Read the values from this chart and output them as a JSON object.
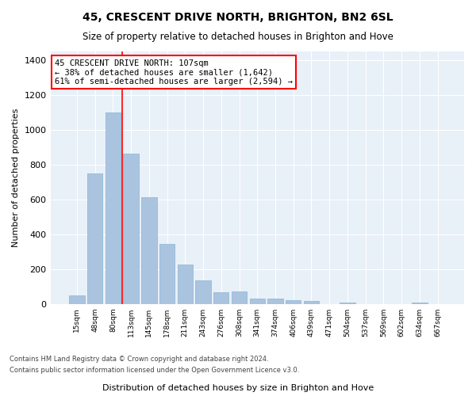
{
  "title": "45, CRESCENT DRIVE NORTH, BRIGHTON, BN2 6SL",
  "subtitle": "Size of property relative to detached houses in Brighton and Hove",
  "xlabel": "Distribution of detached houses by size in Brighton and Hove",
  "ylabel": "Number of detached properties",
  "bar_labels": [
    "15sqm",
    "48sqm",
    "80sqm",
    "113sqm",
    "145sqm",
    "178sqm",
    "211sqm",
    "243sqm",
    "276sqm",
    "308sqm",
    "341sqm",
    "374sqm",
    "406sqm",
    "439sqm",
    "471sqm",
    "504sqm",
    "537sqm",
    "569sqm",
    "602sqm",
    "634sqm",
    "667sqm"
  ],
  "bar_heights": [
    50,
    750,
    1100,
    865,
    615,
    345,
    225,
    135,
    65,
    70,
    30,
    30,
    20,
    15,
    0,
    10,
    0,
    0,
    0,
    10,
    0
  ],
  "bar_color": "#aac4e0",
  "bar_edge_color": "#8ab4d4",
  "background_color": "#e8f0f8",
  "grid_color": "#ffffff",
  "annotation_text": "45 CRESCENT DRIVE NORTH: 107sqm\n← 38% of detached houses are smaller (1,642)\n61% of semi-detached houses are larger (2,594) →",
  "vline_bin_index": 2,
  "ylim": [
    0,
    1450
  ],
  "yticks": [
    0,
    200,
    400,
    600,
    800,
    1000,
    1200,
    1400
  ],
  "footer_line1": "Contains HM Land Registry data © Crown copyright and database right 2024.",
  "footer_line2": "Contains public sector information licensed under the Open Government Licence v3.0."
}
